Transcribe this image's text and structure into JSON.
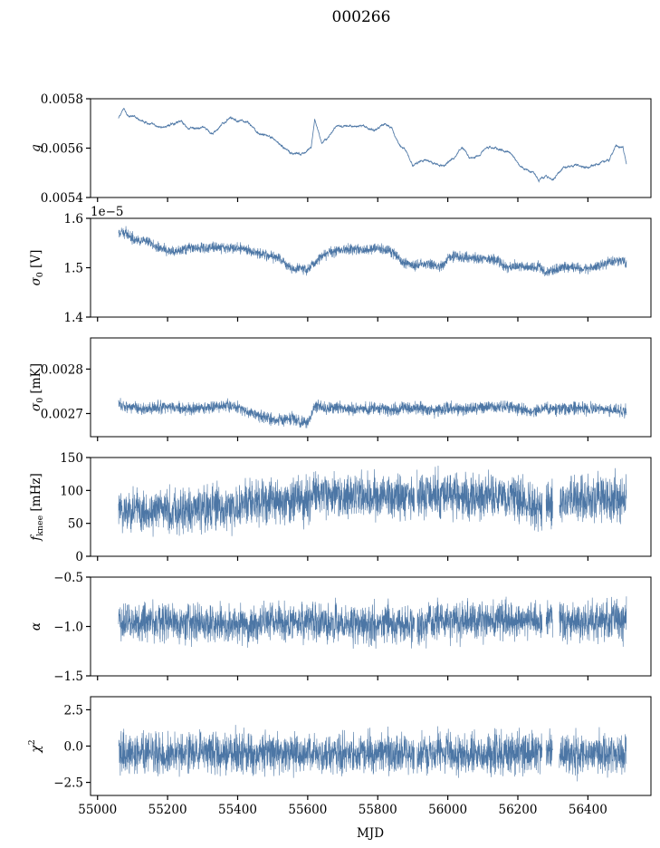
{
  "figure": {
    "title": "000266",
    "xlabel": "MJD"
  },
  "colors": {
    "series": "#4c76a5",
    "axes": "#000000",
    "background": "#ffffff"
  },
  "chart_data": [
    {
      "type": "line",
      "id": "g",
      "ylabel": "g",
      "ylabel_html": "<tspan font-style='italic'>g</tspan>",
      "xlim": [
        54980,
        56580
      ],
      "ylim": [
        0.0054,
        0.0058
      ],
      "yticks": [
        0.0054,
        0.0056,
        0.0058
      ],
      "ytick_labels": [
        "0.0054",
        "0.0056",
        "0.0058"
      ],
      "offset_text": "",
      "show_xtick_labels": false,
      "noise": 4.5e-06,
      "series": [
        {
          "x": [
            55060,
            55075,
            55090,
            55120,
            55150,
            55170,
            55200,
            55240,
            55260,
            55300,
            55330,
            55360,
            55380,
            55400,
            55430,
            55460,
            55490,
            55520,
            55550,
            55580,
            55610,
            55620,
            55640,
            55680,
            55720,
            55760,
            55790,
            55820,
            55840,
            55860,
            55880,
            55900,
            55930,
            55960,
            55990,
            56020,
            56040,
            56060,
            56090,
            56110,
            56140,
            56180,
            56210,
            56240,
            56260,
            56280,
            56300,
            56330,
            56360,
            56400,
            56430,
            56460,
            56480,
            56500,
            56510
          ],
          "y": [
            0.00572,
            0.00576,
            0.00573,
            0.00572,
            0.0057,
            0.00568,
            0.00569,
            0.00571,
            0.00568,
            0.00568,
            0.00566,
            0.0057,
            0.00573,
            0.00571,
            0.0057,
            0.00566,
            0.00565,
            0.00562,
            0.00558,
            0.00557,
            0.0056,
            0.00572,
            0.00562,
            0.00568,
            0.00569,
            0.00569,
            0.00567,
            0.0057,
            0.00568,
            0.00562,
            0.00559,
            0.00553,
            0.00555,
            0.00554,
            0.00553,
            0.00557,
            0.00561,
            0.00556,
            0.00557,
            0.0056,
            0.0056,
            0.00558,
            0.00552,
            0.00551,
            0.00547,
            0.00549,
            0.00547,
            0.00552,
            0.00553,
            0.00552,
            0.00554,
            0.00555,
            0.00561,
            0.0056,
            0.00553
          ]
        }
      ]
    },
    {
      "type": "line",
      "id": "sigma0_V",
      "ylabel": "σ0 [V]",
      "ylabel_html": "<tspan font-style='italic'>σ</tspan><tspan font-size='70%' dy='3'>0</tspan><tspan dy='-3'> [V]</tspan>",
      "xlim": [
        54980,
        56580
      ],
      "ylim": [
        1.4,
        1.6
      ],
      "yticks": [
        1.4,
        1.5,
        1.6
      ],
      "ytick_labels": [
        "1.4",
        "1.5",
        "1.6"
      ],
      "offset_text": "1e−5",
      "show_xtick_labels": false,
      "noise": 0.0065,
      "series": [
        {
          "x": [
            55060,
            55080,
            55100,
            55140,
            55180,
            55220,
            55260,
            55300,
            55340,
            55380,
            55420,
            55460,
            55490,
            55520,
            55540,
            55560,
            55580,
            55600,
            55620,
            55640,
            55680,
            55720,
            55760,
            55800,
            55830,
            55850,
            55870,
            55900,
            55940,
            55970,
            55990,
            56000,
            56030,
            56060,
            56100,
            56140,
            56170,
            56200,
            56230,
            56260,
            56280,
            56300,
            56320,
            56360,
            56380,
            56420,
            56460,
            56500,
            56510
          ],
          "y": [
            1.568,
            1.572,
            1.56,
            1.552,
            1.54,
            1.53,
            1.54,
            1.54,
            1.542,
            1.54,
            1.538,
            1.53,
            1.525,
            1.52,
            1.505,
            1.495,
            1.5,
            1.495,
            1.51,
            1.525,
            1.535,
            1.538,
            1.535,
            1.54,
            1.535,
            1.53,
            1.51,
            1.505,
            1.508,
            1.505,
            1.505,
            1.52,
            1.522,
            1.52,
            1.518,
            1.515,
            1.5,
            1.505,
            1.5,
            1.503,
            1.49,
            1.495,
            1.5,
            1.502,
            1.498,
            1.502,
            1.51,
            1.515,
            1.505
          ]
        }
      ]
    },
    {
      "type": "line",
      "id": "sigma0_mK",
      "ylabel": "σ0 [mK]",
      "ylabel_html": "<tspan font-style='italic'>σ</tspan><tspan font-size='70%' dy='3'>0</tspan><tspan dy='-3'> [mK]</tspan>",
      "xlim": [
        54980,
        56580
      ],
      "ylim": [
        0.002648,
        0.00287
      ],
      "yticks": [
        0.0027,
        0.0028
      ],
      "ytick_labels": [
        "0.0027",
        "0.0028"
      ],
      "offset_text": "",
      "show_xtick_labels": false,
      "noise": 8.5e-06,
      "series": [
        {
          "x": [
            55060,
            55100,
            55140,
            55200,
            55260,
            55300,
            55360,
            55400,
            55440,
            55480,
            55520,
            55560,
            55580,
            55600,
            55620,
            55660,
            55700,
            55760,
            55800,
            55840,
            55880,
            55920,
            55960,
            56000,
            56040,
            56080,
            56120,
            56160,
            56200,
            56240,
            56280,
            56320,
            56360,
            56400,
            56440,
            56480,
            56510
          ],
          "y": [
            0.00272,
            0.002715,
            0.00271,
            0.002715,
            0.00271,
            0.002712,
            0.002718,
            0.002715,
            0.0027,
            0.00269,
            0.002685,
            0.002688,
            0.002682,
            0.002678,
            0.002715,
            0.002712,
            0.002712,
            0.00271,
            0.002712,
            0.002708,
            0.002712,
            0.002715,
            0.002705,
            0.002712,
            0.00271,
            0.002712,
            0.002715,
            0.002715,
            0.002712,
            0.002705,
            0.002712,
            0.00271,
            0.002712,
            0.002712,
            0.00271,
            0.002708,
            0.002705
          ]
        }
      ]
    },
    {
      "type": "line",
      "id": "fknee",
      "ylabel": "fknee [mHz]",
      "ylabel_html": "<tspan font-style='italic'>f</tspan><tspan font-size='70%' dy='3'>knee</tspan><tspan dy='-3'> [mHz]</tspan>",
      "xlim": [
        54980,
        56580
      ],
      "ylim": [
        0,
        150
      ],
      "yticks": [
        0,
        50,
        100,
        150
      ],
      "ytick_labels": [
        "0",
        "50",
        "100",
        "150"
      ],
      "offset_text": "",
      "show_xtick_labels": false,
      "noise": 21,
      "gaps": [
        [
          55905,
          55912
        ],
        [
          56270,
          56280
        ],
        [
          56300,
          56318
        ]
      ],
      "series": [
        {
          "x": [
            55060,
            55200,
            55400,
            55420,
            55600,
            55610,
            55900,
            56200,
            56250,
            56320,
            56400,
            56510
          ],
          "y": [
            70,
            70,
            72,
            82,
            82,
            92,
            92,
            90,
            75,
            85,
            87,
            85
          ]
        }
      ]
    },
    {
      "type": "line",
      "id": "alpha",
      "ylabel": "α",
      "ylabel_html": "<tspan font-style='italic'>α</tspan>",
      "xlim": [
        54980,
        56580
      ],
      "ylim": [
        -1.5,
        -0.5
      ],
      "yticks": [
        -1.5,
        -1.0,
        -0.5
      ],
      "ytick_labels": [
        "−1.5",
        "−1.0",
        "−0.5"
      ],
      "offset_text": "",
      "show_xtick_labels": false,
      "noise": 0.12,
      "gaps": [
        [
          55905,
          55912
        ],
        [
          56270,
          56280
        ],
        [
          56300,
          56318
        ]
      ],
      "series": [
        {
          "x": [
            55060,
            55200,
            55400,
            55500,
            55600,
            55800,
            56000,
            56200,
            56400,
            56510
          ],
          "y": [
            -0.95,
            -0.95,
            -0.98,
            -0.96,
            -0.95,
            -0.98,
            -0.95,
            -0.93,
            -0.95,
            -0.94
          ]
        }
      ]
    },
    {
      "type": "line",
      "id": "chi2",
      "ylabel": "χ2",
      "ylabel_html": "<tspan font-style='italic'>χ</tspan><tspan font-size='70%' dy='-6'>2</tspan>",
      "xlim": [
        54980,
        56580
      ],
      "ylim": [
        -3.4,
        3.4
      ],
      "yticks": [
        -2.5,
        0.0,
        2.5
      ],
      "ytick_labels": [
        "−2.5",
        "0.0",
        "2.5"
      ],
      "offset_text": "",
      "show_xtick_labels": true,
      "xticks": [
        55000,
        55200,
        55400,
        55600,
        55800,
        56000,
        56200,
        56400
      ],
      "xtick_labels": [
        "55000",
        "55200",
        "55400",
        "55600",
        "55800",
        "56000",
        "56200",
        "56400"
      ],
      "noise": 0.85,
      "gaps": [
        [
          55905,
          55912
        ],
        [
          56270,
          56280
        ],
        [
          56300,
          56318
        ]
      ],
      "series": [
        {
          "x": [
            55060,
            56510
          ],
          "y": [
            -0.5,
            -0.5
          ]
        }
      ]
    }
  ]
}
